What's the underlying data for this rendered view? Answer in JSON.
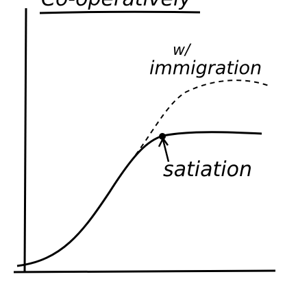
{
  "header": {
    "title": "Co-operatively"
  },
  "labels": {
    "immigration_prefix": "w/",
    "immigration": "immigration",
    "satiation": "satiation"
  }
}
